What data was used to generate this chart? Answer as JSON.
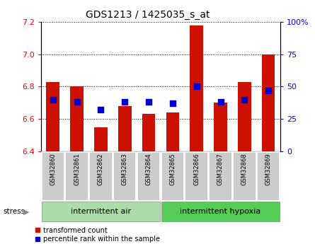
{
  "title": "GDS1213 / 1425035_s_at",
  "samples": [
    "GSM32860",
    "GSM32861",
    "GSM32862",
    "GSM32863",
    "GSM32864",
    "GSM32865",
    "GSM32866",
    "GSM32867",
    "GSM32868",
    "GSM32869"
  ],
  "red_values": [
    6.83,
    6.8,
    6.55,
    6.68,
    6.63,
    6.64,
    7.18,
    6.7,
    6.83,
    7.0
  ],
  "blue_values_pct": [
    40,
    38,
    32,
    38,
    38,
    37,
    50,
    38,
    40,
    47
  ],
  "ylim_left": [
    6.4,
    7.2
  ],
  "ylim_right": [
    0,
    100
  ],
  "yticks_left": [
    6.4,
    6.6,
    6.8,
    7.0,
    7.2
  ],
  "yticks_right": [
    0,
    25,
    50,
    75,
    100
  ],
  "ytick_labels_right": [
    "0",
    "25",
    "50",
    "75",
    "100%"
  ],
  "group1_label": "intermittent air",
  "group2_label": "intermittent hypoxia",
  "group1_count": 5,
  "group2_count": 5,
  "stress_label": "stress",
  "legend_red": "transformed count",
  "legend_blue": "percentile rank within the sample",
  "bar_color": "#cc1100",
  "dot_color": "#0000cc",
  "group_bg1": "#aaddaa",
  "group_bg2": "#55cc55",
  "sample_bg": "#cccccc",
  "bar_bottom": 6.4,
  "bar_width": 0.55,
  "dot_size": 30
}
